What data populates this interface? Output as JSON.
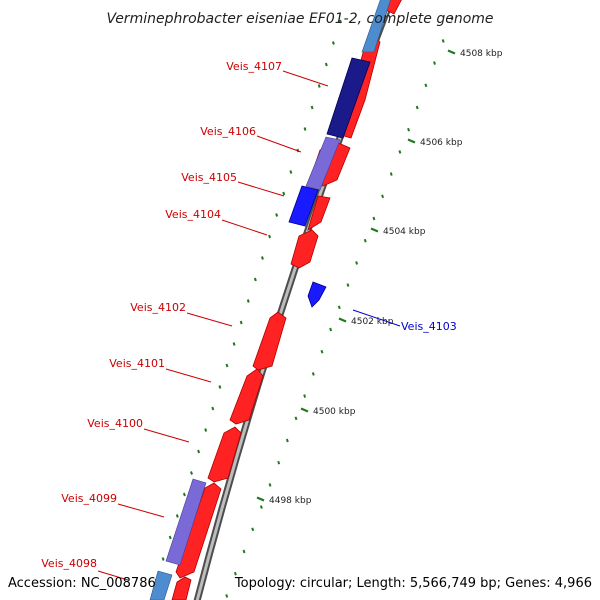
{
  "title": "Verminephrobacter eiseniae EF01-2, complete genome",
  "accession": "Accession: NC_008786",
  "topology": "Topology: circular; Length: 5,566,749 bp; Genes: 4,966",
  "colors": {
    "forward": "#ff1a1a",
    "reverse": "#1a1aff",
    "label_red": "#cc0000",
    "label_blue": "#0000cc",
    "backbone": "#8a8a8a",
    "tick": "#1f7a1f"
  },
  "scale_ticks": [
    {
      "kbp": 4498,
      "label": "4498 kbp"
    },
    {
      "kbp": 4500,
      "label": "4500 kbp"
    },
    {
      "kbp": 4502,
      "label": "4502 kbp"
    },
    {
      "kbp": 4504,
      "label": "4504 kbp"
    },
    {
      "kbp": 4506,
      "label": "4506 kbp"
    },
    {
      "kbp": 4508,
      "label": "4508 kbp"
    }
  ],
  "genes": [
    {
      "name": "Veis_4098",
      "color": "red"
    },
    {
      "name": "Veis_4099",
      "color": "red"
    },
    {
      "name": "Veis_4100",
      "color": "red"
    },
    {
      "name": "Veis_4101",
      "color": "red"
    },
    {
      "name": "Veis_4102",
      "color": "red"
    },
    {
      "name": "Veis_4103",
      "color": "blue"
    },
    {
      "name": "Veis_4104",
      "color": "red"
    },
    {
      "name": "Veis_4105",
      "color": "red"
    },
    {
      "name": "Veis_4106",
      "color": "red"
    },
    {
      "name": "Veis_4107",
      "color": "red"
    }
  ]
}
